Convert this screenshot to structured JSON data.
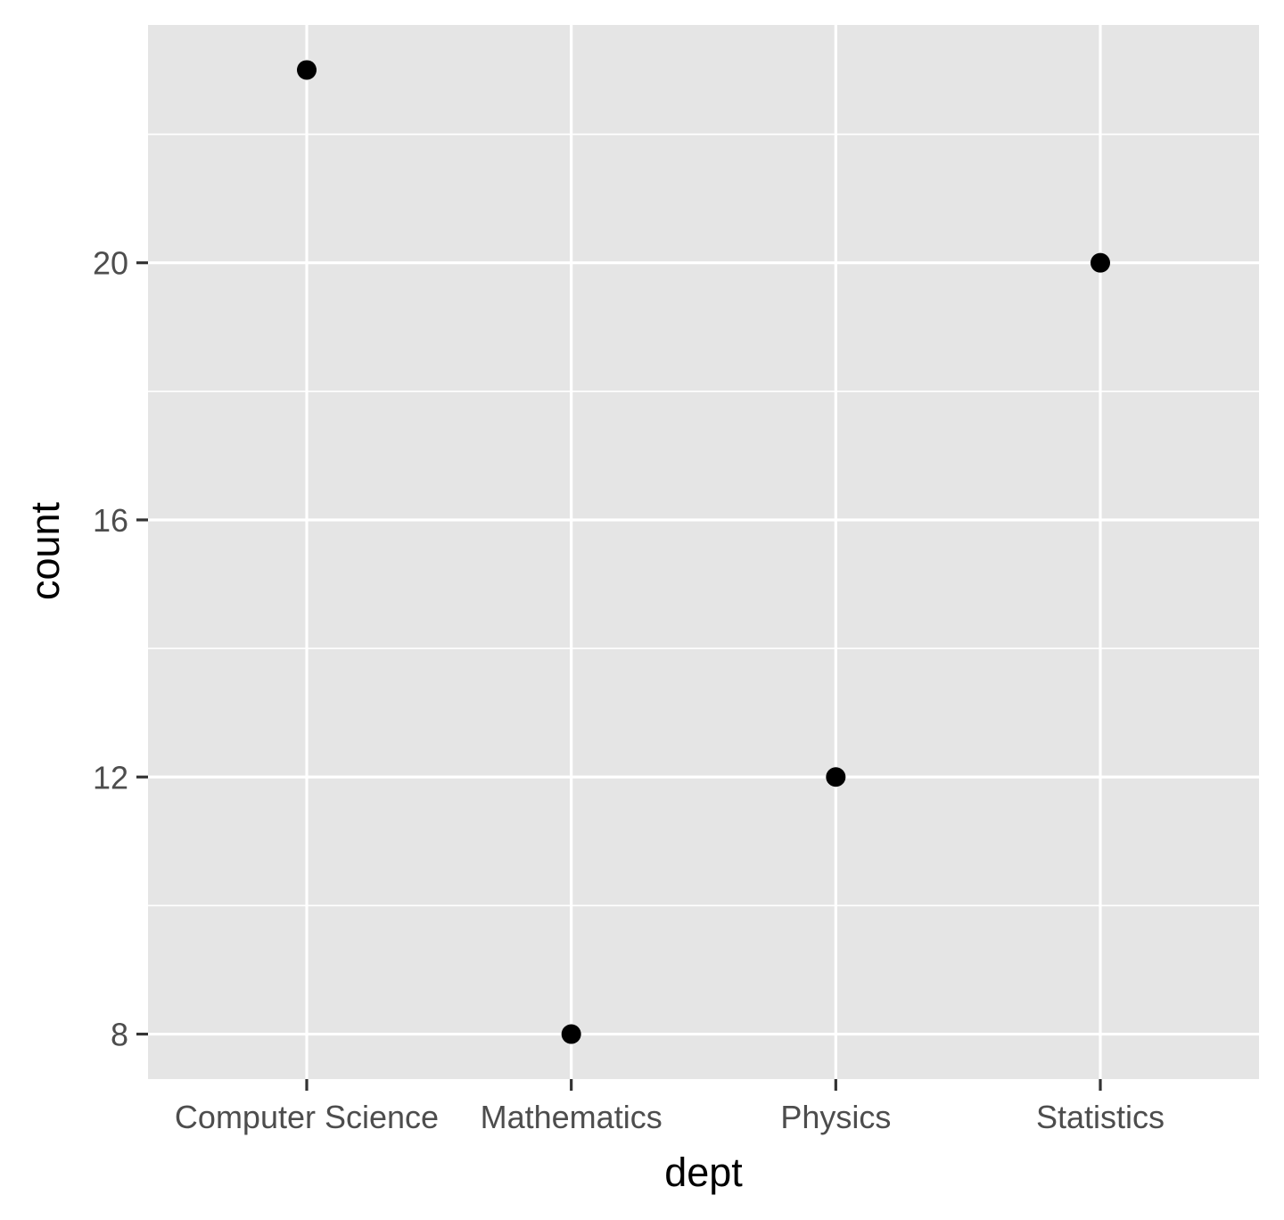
{
  "chart_data": {
    "type": "scatter",
    "title": "",
    "xlabel": "dept",
    "ylabel": "count",
    "categories": [
      "Computer Science",
      "Mathematics",
      "Physics",
      "Statistics"
    ],
    "values": [
      23,
      8,
      12,
      20
    ],
    "ylim": [
      7.3,
      23.7
    ],
    "y_ticks": [
      8,
      12,
      16,
      20
    ],
    "grid": true,
    "legend": "none",
    "colors": {
      "panel_background": "#e5e5e5",
      "grid": "#ffffff",
      "points": "#000000",
      "tick_text": "#4d4d4d",
      "axis_title": "#000000"
    }
  }
}
